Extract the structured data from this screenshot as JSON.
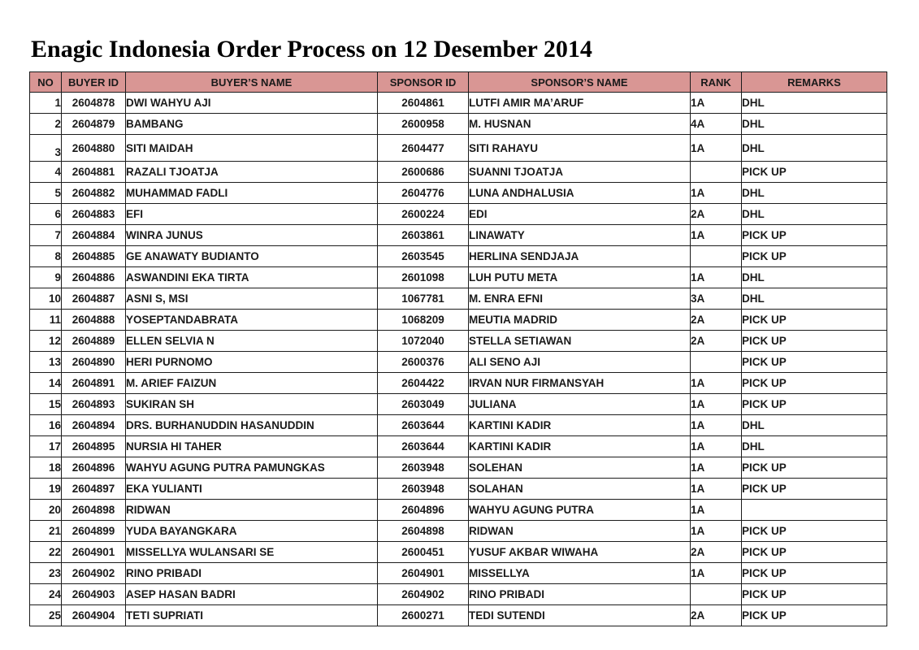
{
  "page": {
    "title": "Enagic Indonesia Order Process on 12 Desember 2014"
  },
  "colors": {
    "header_bg": "#d99694",
    "border": "#1c1c1c",
    "text": "#1a1a1a"
  },
  "table": {
    "headers": [
      "NO",
      "BUYER ID",
      "BUYER’S NAME",
      "SPONSOR ID",
      "SPONSOR’S NAME",
      "RANK",
      "REMARKS"
    ],
    "rows": [
      [
        "1",
        "2604878",
        "DWI WAHYU AJI",
        "2604861",
        "LUTFI AMIR MA’ARUF",
        "1A",
        "DHL"
      ],
      [
        "2",
        "2604879",
        "BAMBANG",
        "2600958",
        "M. HUSNAN",
        "4A",
        "DHL"
      ],
      [
        "3",
        "2604880",
        "SITI MAIDAH",
        "2604477",
        "SITI RAHAYU",
        "1A",
        "DHL"
      ],
      [
        "4",
        "2604881",
        "RAZALI TJOATJA",
        "2600686",
        "SUANNI TJOATJA",
        "",
        "PICK UP"
      ],
      [
        "5",
        "2604882",
        "MUHAMMAD FADLI",
        "2604776",
        "LUNA ANDHALUSIA",
        "1A",
        "DHL"
      ],
      [
        "6",
        "2604883",
        "EFI",
        "2600224",
        "EDI",
        "2A",
        "DHL"
      ],
      [
        "7",
        "2604884",
        "WINRA JUNUS",
        "2603861",
        "LINAWATY",
        "1A",
        "PICK UP"
      ],
      [
        "8",
        "2604885",
        "GE ANAWATY BUDIANTO",
        "2603545",
        "HERLINA SENDJAJA",
        "",
        "PICK UP"
      ],
      [
        "9",
        "2604886",
        "ASWANDINI EKA TIRTA",
        "2601098",
        "LUH PUTU META",
        "1A",
        "DHL"
      ],
      [
        "10",
        "2604887",
        "ASNI S, MSI",
        "1067781",
        "M. ENRA EFNI",
        "3A",
        "DHL"
      ],
      [
        "11",
        "2604888",
        "YOSEPTANDABRATA",
        "1068209",
        "MEUTIA MADRID",
        "2A",
        "PICK UP"
      ],
      [
        "12",
        "2604889",
        "ELLEN SELVIA N",
        "1072040",
        "STELLA SETIAWAN",
        "2A",
        "PICK UP"
      ],
      [
        "13",
        "2604890",
        "HERI PURNOMO",
        "2600376",
        "ALI SENO AJI",
        "",
        "PICK UP"
      ],
      [
        "14",
        "2604891",
        "M. ARIEF FAIZUN",
        "2604422",
        "IRVAN NUR FIRMANSYAH",
        "1A",
        "PICK UP"
      ],
      [
        "15",
        "2604893",
        "SUKIRAN SH",
        "2603049",
        "JULIANA",
        "1A",
        "PICK UP"
      ],
      [
        "16",
        "2604894",
        "DRS. BURHANUDDIN HASANUDDIN",
        "2603644",
        "KARTINI KADIR",
        "1A",
        "DHL"
      ],
      [
        "17",
        "2604895",
        "NURSIA HI TAHER",
        "2603644",
        "KARTINI KADIR",
        "1A",
        "DHL"
      ],
      [
        "18",
        "2604896",
        "WAHYU AGUNG PUTRA PAMUNGKAS",
        "2603948",
        "SOLEHAN",
        "1A",
        "PICK UP"
      ],
      [
        "19",
        "2604897",
        "EKA YULIANTI",
        "2603948",
        "SOLAHAN",
        "1A",
        "PICK UP"
      ],
      [
        "20",
        "2604898",
        "RIDWAN",
        "2604896",
        "WAHYU AGUNG PUTRA",
        "1A",
        ""
      ],
      [
        "21",
        "2604899",
        "YUDA BAYANGKARA",
        "2604898",
        "RIDWAN",
        "1A",
        "PICK UP"
      ],
      [
        "22",
        "2604901",
        "MISSELLYA WULANSARI SE",
        "2600451",
        "YUSUF AKBAR WIWAHA",
        "2A",
        "PICK UP"
      ],
      [
        "23",
        "2604902",
        "RINO PRIBADI",
        "2604901",
        "MISSELLYA",
        "1A",
        "PICK UP"
      ],
      [
        "24",
        "2604903",
        "ASEP HASAN BADRI",
        "2604902",
        "RINO PRIBADI",
        "",
        "PICK UP"
      ],
      [
        "25",
        "2604904",
        "TETI SUPRIATI",
        "2600271",
        "TEDI SUTENDI",
        "2A",
        "PICK UP"
      ]
    ]
  }
}
